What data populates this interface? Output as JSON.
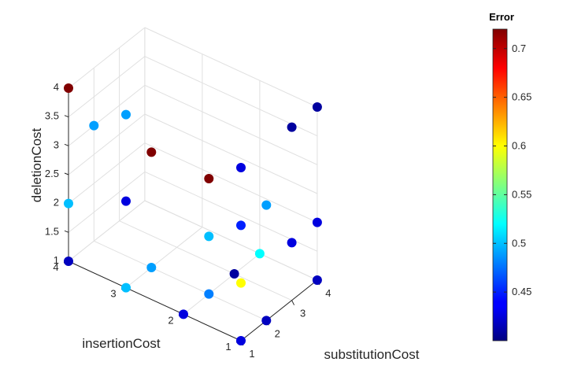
{
  "chart_data": {
    "type": "scatter",
    "title": "",
    "xlabel": "substitutionCost",
    "ylabel": "insertionCost",
    "zlabel": "deletionCost",
    "x_ticks": [
      "1",
      "2",
      "3",
      "4"
    ],
    "y_ticks": [
      "1",
      "2",
      "3",
      "4"
    ],
    "z_ticks": [
      "1",
      "1.5",
      "2",
      "2.5",
      "3",
      "3.5",
      "4"
    ],
    "xlim": [
      1,
      4
    ],
    "ylim": [
      1,
      4
    ],
    "zlim": [
      1,
      4
    ],
    "grid": true,
    "colorbar": {
      "title": "Error",
      "colormap": "jet",
      "range": [
        0.4,
        0.72
      ],
      "ticks": [
        "0.45",
        "0.5",
        "0.55",
        "0.6",
        "0.65",
        "0.7"
      ]
    },
    "points": [
      {
        "x": 1,
        "y": 1,
        "z": 1,
        "error": 0.43
      },
      {
        "x": 2,
        "y": 1,
        "z": 1,
        "error": 0.42
      },
      {
        "x": 4,
        "y": 1,
        "z": 1,
        "error": 0.42
      },
      {
        "x": 1,
        "y": 2,
        "z": 1,
        "error": 0.43
      },
      {
        "x": 1,
        "y": 4,
        "z": 1,
        "error": 0.42
      },
      {
        "x": 1,
        "y": 3,
        "z": 1,
        "error": 0.5
      },
      {
        "x": 2,
        "y": 2,
        "z": 1,
        "error": 0.48
      },
      {
        "x": 2,
        "y": 2,
        "z": 2,
        "error": 0.5
      },
      {
        "x": 2,
        "y": 3,
        "z": 1,
        "error": 0.49
      },
      {
        "x": 3,
        "y": 2,
        "z": 1,
        "error": 0.41
      },
      {
        "x": 4,
        "y": 2,
        "z": 1,
        "error": 0.52
      },
      {
        "x": 1,
        "y": 4,
        "z": 2,
        "error": 0.5
      },
      {
        "x": 1,
        "y": 3,
        "z": 2.5,
        "error": 0.43
      },
      {
        "x": 1,
        "y": 4,
        "z": 4,
        "error": 0.72
      },
      {
        "x": 1,
        "y": 3,
        "z": 4,
        "error": 0.49
      },
      {
        "x": 2,
        "y": 3,
        "z": 3,
        "error": 0.72
      },
      {
        "x": 2,
        "y": 2,
        "z": 3,
        "error": 0.72
      },
      {
        "x": 2,
        "y": 4,
        "z": 3,
        "error": 0.49
      },
      {
        "x": 1,
        "y": 1,
        "z": 4,
        "error": 0.43
      },
      {
        "x": 1,
        "y": 1,
        "z": 3,
        "error": 0.45
      },
      {
        "x": 2,
        "y": 1,
        "z": 3,
        "error": 0.49
      },
      {
        "x": 1,
        "y": 1,
        "z": 2,
        "error": 0.6
      },
      {
        "x": 3,
        "y": 1,
        "z": 2,
        "error": 0.43
      },
      {
        "x": 3,
        "y": 1,
        "z": 4,
        "error": 0.41
      },
      {
        "x": 4,
        "y": 1,
        "z": 2,
        "error": 0.43
      },
      {
        "x": 4,
        "y": 1,
        "z": 4,
        "error": 0.41
      }
    ]
  }
}
